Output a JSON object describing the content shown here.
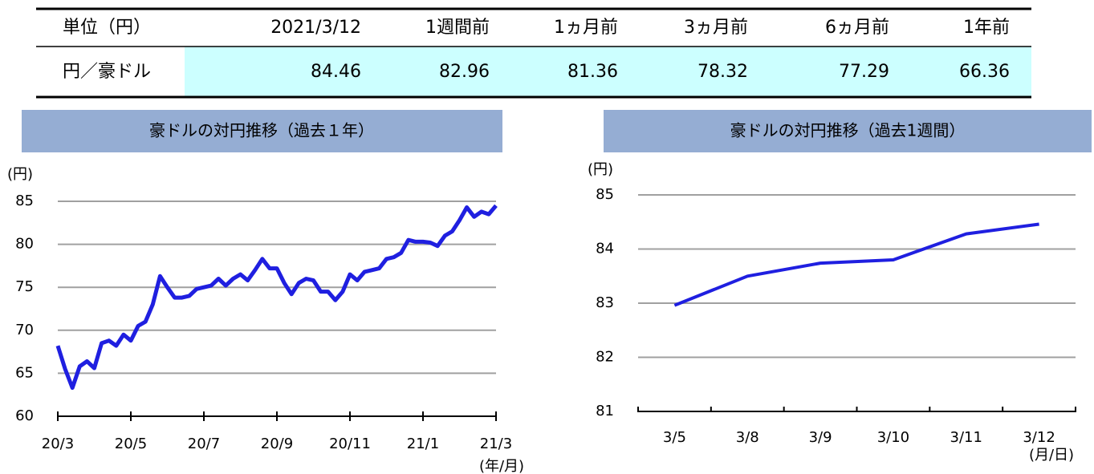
{
  "table": {
    "header": [
      "単位（円）",
      "2021/3/12",
      "1週間前",
      "1ヵ月前",
      "3ヵ月前",
      "6ヵ月前",
      "1年前"
    ],
    "rows": [
      [
        "円／豪ドル",
        84.46,
        82.96,
        81.36,
        78.32,
        77.29,
        66.36
      ]
    ]
  },
  "chart_data": [
    {
      "type": "line",
      "title": "豪ドルの対円推移（過去１年）",
      "y_label": "(円)",
      "x_label": "(年/月)",
      "categories": [
        "20/3",
        null,
        null,
        null,
        null,
        null,
        null,
        null,
        null,
        null,
        "20/5",
        null,
        null,
        null,
        null,
        null,
        null,
        null,
        null,
        null,
        "20/7",
        null,
        null,
        null,
        null,
        null,
        null,
        null,
        null,
        null,
        "20/9",
        null,
        null,
        null,
        null,
        null,
        null,
        null,
        null,
        null,
        "20/11",
        null,
        null,
        null,
        null,
        null,
        null,
        null,
        null,
        null,
        "21/1",
        null,
        null,
        null,
        null,
        null,
        null,
        null,
        null,
        null,
        "21/3"
      ],
      "series": [
        {
          "name": "円／豪ドル",
          "color": "#1f1fe0",
          "values": [
            68.2,
            65.5,
            63.3,
            65.8,
            66.4,
            65.6,
            68.5,
            68.8,
            68.2,
            69.5,
            68.8,
            70.5,
            71,
            73,
            76.3,
            75,
            73.8,
            73.8,
            74,
            74.8,
            75,
            75.2,
            76,
            75.2,
            76,
            76.5,
            75.8,
            77,
            78.3,
            77.2,
            77.2,
            75.5,
            74.2,
            75.5,
            76,
            75.8,
            74.5,
            74.5,
            73.5,
            74.5,
            76.5,
            75.8,
            76.8,
            77,
            77.2,
            78.3,
            78.5,
            79,
            80.5,
            80.3,
            80.3,
            80.2,
            79.8,
            81,
            81.5,
            82.8,
            84.3,
            83.2,
            83.8,
            83.5,
            84.5
          ]
        }
      ],
      "ylim": [
        60,
        85
      ],
      "yticks": [
        60,
        65,
        70,
        75,
        80,
        85
      ],
      "grid": true
    },
    {
      "type": "line",
      "title": "豪ドルの対円推移（過去1週間）",
      "y_label": "(円)",
      "x_label": "(月/日)",
      "categories": [
        "3/5",
        "3/8",
        "3/9",
        "3/10",
        "3/11",
        "3/12"
      ],
      "series": [
        {
          "name": "円／豪ドル",
          "color": "#1f1fe0",
          "values": [
            82.96,
            83.5,
            83.74,
            83.8,
            84.28,
            84.46
          ]
        }
      ],
      "ylim": [
        81,
        85
      ],
      "yticks": [
        81,
        82,
        83,
        84,
        85
      ],
      "grid": true
    }
  ]
}
